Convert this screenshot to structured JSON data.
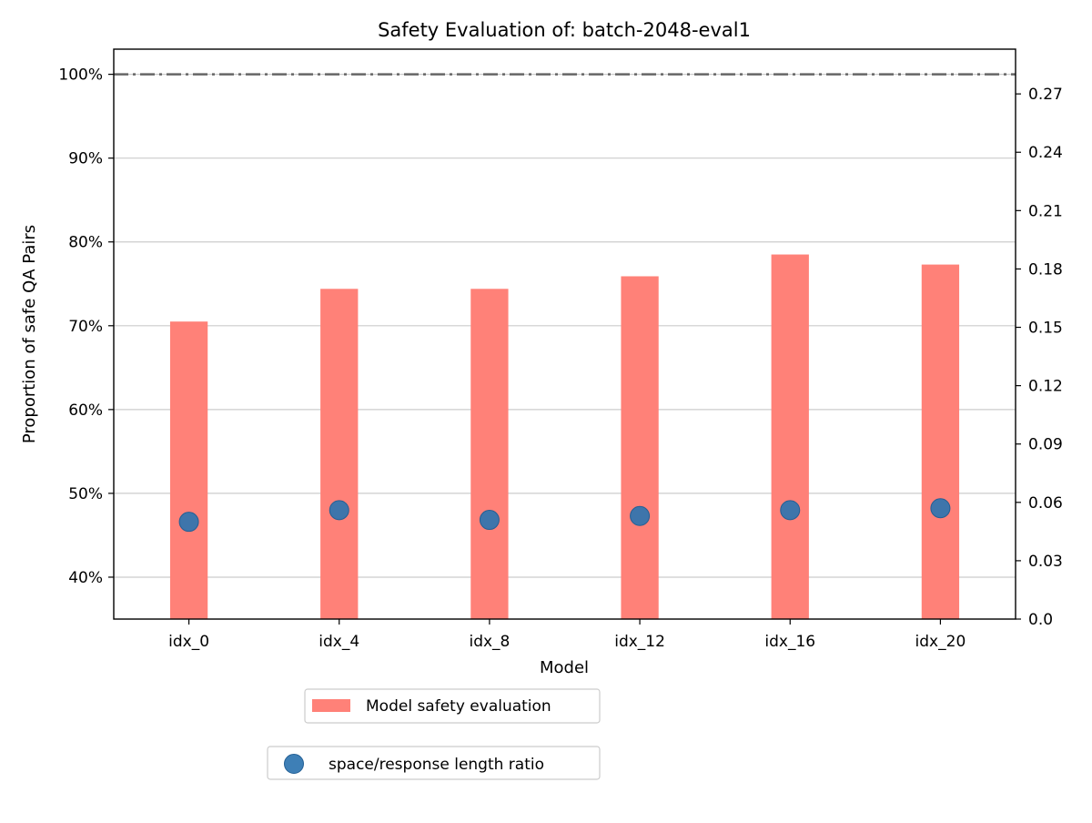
{
  "chart_data": {
    "type": "bar",
    "title": "Safety Evaluation of: batch-2048-eval1",
    "xlabel": "Model",
    "ylabel": "Proportion of safe QA Pairs",
    "categories": [
      "idx_0",
      "idx_4",
      "idx_8",
      "idx_12",
      "idx_16",
      "idx_20"
    ],
    "series": [
      {
        "name": "Model safety evaluation",
        "type": "bar",
        "axis": "left",
        "color": "#ff8178",
        "values": [
          0.705,
          0.744,
          0.744,
          0.759,
          0.785,
          0.773
        ]
      },
      {
        "name": "space/response length ratio",
        "type": "scatter",
        "axis": "right",
        "color": "#2e74b0",
        "values": [
          0.05,
          0.056,
          0.051,
          0.053,
          0.056,
          0.057
        ]
      }
    ],
    "ylim": [
      0.35,
      1.03
    ],
    "y_ticks": [
      0.4,
      0.5,
      0.6,
      0.7,
      0.8,
      0.9,
      1.0
    ],
    "y_tick_labels": [
      "40%",
      "50%",
      "60%",
      "70%",
      "80%",
      "90%",
      "100%"
    ],
    "y2lim": [
      0.0,
      0.293
    ],
    "y2_ticks": [
      0.0,
      0.03,
      0.06,
      0.09,
      0.12,
      0.15,
      0.18,
      0.21,
      0.24,
      0.27
    ],
    "y2_tick_labels": [
      "0.0",
      "0.03",
      "0.06",
      "0.09",
      "0.12",
      "0.15",
      "0.18",
      "0.21",
      "0.24",
      "0.27"
    ],
    "reference_line": {
      "y": 1.0,
      "style": "dash-dot",
      "color": "#666666"
    },
    "grid": true,
    "legend_placement": "below"
  }
}
